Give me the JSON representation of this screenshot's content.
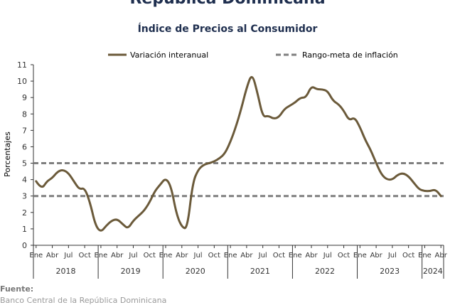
{
  "header": {
    "title": "República Dominicana",
    "subtitle": "Índice de Precios al Consumidor"
  },
  "source": {
    "label": "Fuente:",
    "text": "Banco Central de la República Dominicana"
  },
  "colors": {
    "series": "#6b5a3a",
    "target": "#7f7f7f",
    "axis": "#333333"
  },
  "chart_data": {
    "type": "line",
    "title": "Índice de Precios al Consumidor",
    "xlabel": "",
    "ylabel": "Porcentajes",
    "ylim": [
      0,
      11
    ],
    "yticks": [
      0,
      1,
      2,
      3,
      4,
      5,
      6,
      7,
      8,
      9,
      10,
      11
    ],
    "grid": false,
    "legend_position": "top",
    "month_tick_labels": [
      "Ene",
      "Abr",
      "Jul",
      "Oct"
    ],
    "years": [
      "2018",
      "2019",
      "2020",
      "2021",
      "2022",
      "2023",
      "2024"
    ],
    "year_month_counts": [
      12,
      12,
      12,
      12,
      12,
      12,
      4
    ],
    "series": [
      {
        "name": "Variación interanual",
        "style": "solid",
        "start": "2018-01",
        "values": [
          3.9,
          3.4,
          3.9,
          4.1,
          4.5,
          4.6,
          4.4,
          3.9,
          3.4,
          3.5,
          2.6,
          1.2,
          0.8,
          1.2,
          1.5,
          1.6,
          1.3,
          1.0,
          1.5,
          1.8,
          2.1,
          2.6,
          3.3,
          3.7,
          4.1,
          3.6,
          1.9,
          1.1,
          1.0,
          3.8,
          4.6,
          4.9,
          5.0,
          5.1,
          5.3,
          5.6,
          6.3,
          7.2,
          8.3,
          9.6,
          10.5,
          9.3,
          7.8,
          7.9,
          7.7,
          7.8,
          8.3,
          8.5,
          8.7,
          9.0,
          9.0,
          9.7,
          9.5,
          9.5,
          9.4,
          8.8,
          8.6,
          8.2,
          7.6,
          7.8,
          7.2,
          6.4,
          5.8,
          5.0,
          4.3,
          4.0,
          4.0,
          4.3,
          4.4,
          4.2,
          3.8,
          3.4,
          3.3,
          3.3,
          3.4,
          3.0
        ]
      },
      {
        "name": "Rango-meta de inflación",
        "style": "dashed",
        "band": [
          3,
          5
        ]
      }
    ]
  }
}
